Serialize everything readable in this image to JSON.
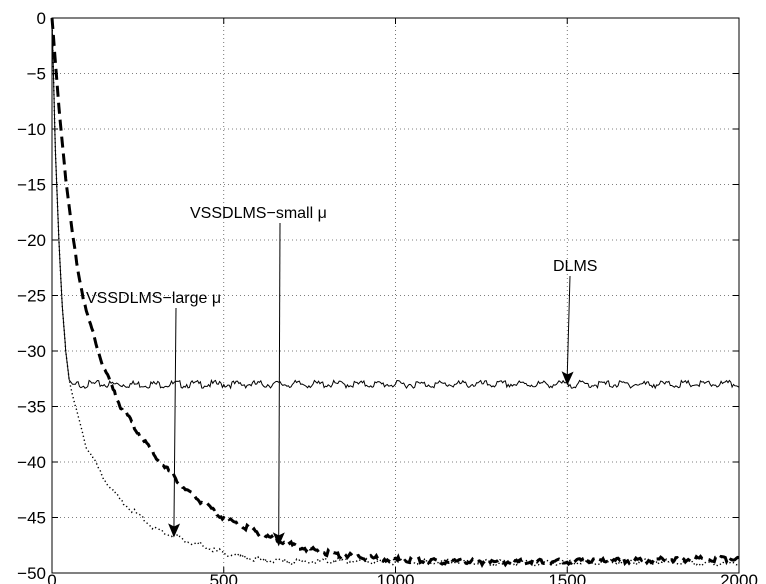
{
  "chart_data": {
    "type": "line",
    "title": "",
    "xlabel": "",
    "ylabel": "",
    "xlim": [
      0,
      2000
    ],
    "ylim": [
      -50,
      0
    ],
    "xticks": [
      0,
      500,
      1000,
      1500,
      2000
    ],
    "yticks": [
      0,
      -5,
      -10,
      -15,
      -20,
      -25,
      -30,
      -35,
      -40,
      -45,
      -50
    ],
    "xtick_labels": [
      "0",
      "500",
      "1000",
      "1500",
      "2000"
    ],
    "ytick_labels": [
      "0",
      "−5",
      "−10",
      "−15",
      "−20",
      "−25",
      "−30",
      "−35",
      "−40",
      "−45",
      "−50"
    ],
    "grid": true,
    "series": [
      {
        "style": "solid",
        "x": [
          0,
          10,
          20,
          30,
          40,
          50,
          60,
          80,
          100,
          200,
          400,
          600,
          800,
          1000,
          1200,
          1400,
          1600,
          1800,
          2000
        ],
        "y": [
          0,
          -12,
          -20,
          -26,
          -30,
          -32.6,
          -33,
          -33,
          -33,
          -33,
          -33,
          -33,
          -33,
          -33,
          -33,
          -33,
          -33,
          -33,
          -33
        ]
      },
      {
        "style": "dashed",
        "x": [
          0,
          20,
          40,
          60,
          80,
          100,
          150,
          200,
          300,
          400,
          500,
          600,
          700,
          800,
          900,
          1000,
          1200,
          1400,
          1600,
          1800,
          2000
        ],
        "y": [
          0,
          -8,
          -14.5,
          -19.5,
          -23.5,
          -26.5,
          -31.5,
          -35,
          -39.5,
          -42.8,
          -45,
          -46.4,
          -47.5,
          -48.2,
          -48.6,
          -48.8,
          -49,
          -49,
          -48.9,
          -48.8,
          -48.7
        ]
      },
      {
        "style": "dotted",
        "x": [
          0,
          10,
          20,
          30,
          40,
          50,
          60,
          80,
          100,
          150,
          200,
          300,
          400,
          500,
          600,
          700,
          800,
          1000,
          1200,
          1400,
          1600,
          1800,
          2000
        ],
        "y": [
          0,
          -12,
          -20,
          -26,
          -30,
          -32.6,
          -34,
          -36.5,
          -38.5,
          -41.5,
          -43.5,
          -46,
          -47.2,
          -48.2,
          -48.8,
          -49,
          -48.9,
          -49,
          -49,
          -49.1,
          -49,
          -49,
          -49.2
        ]
      }
    ],
    "annotations": [
      {
        "text": "VSSDLMS−small μ",
        "target": {
          "x": 660,
          "y": -47.6
        }
      },
      {
        "text": "DLMS",
        "target": {
          "x": 1500,
          "y": -33.1
        }
      },
      {
        "text": "VSSDLMS−large μ",
        "target": {
          "x": 355,
          "y": -46.8
        }
      }
    ]
  }
}
